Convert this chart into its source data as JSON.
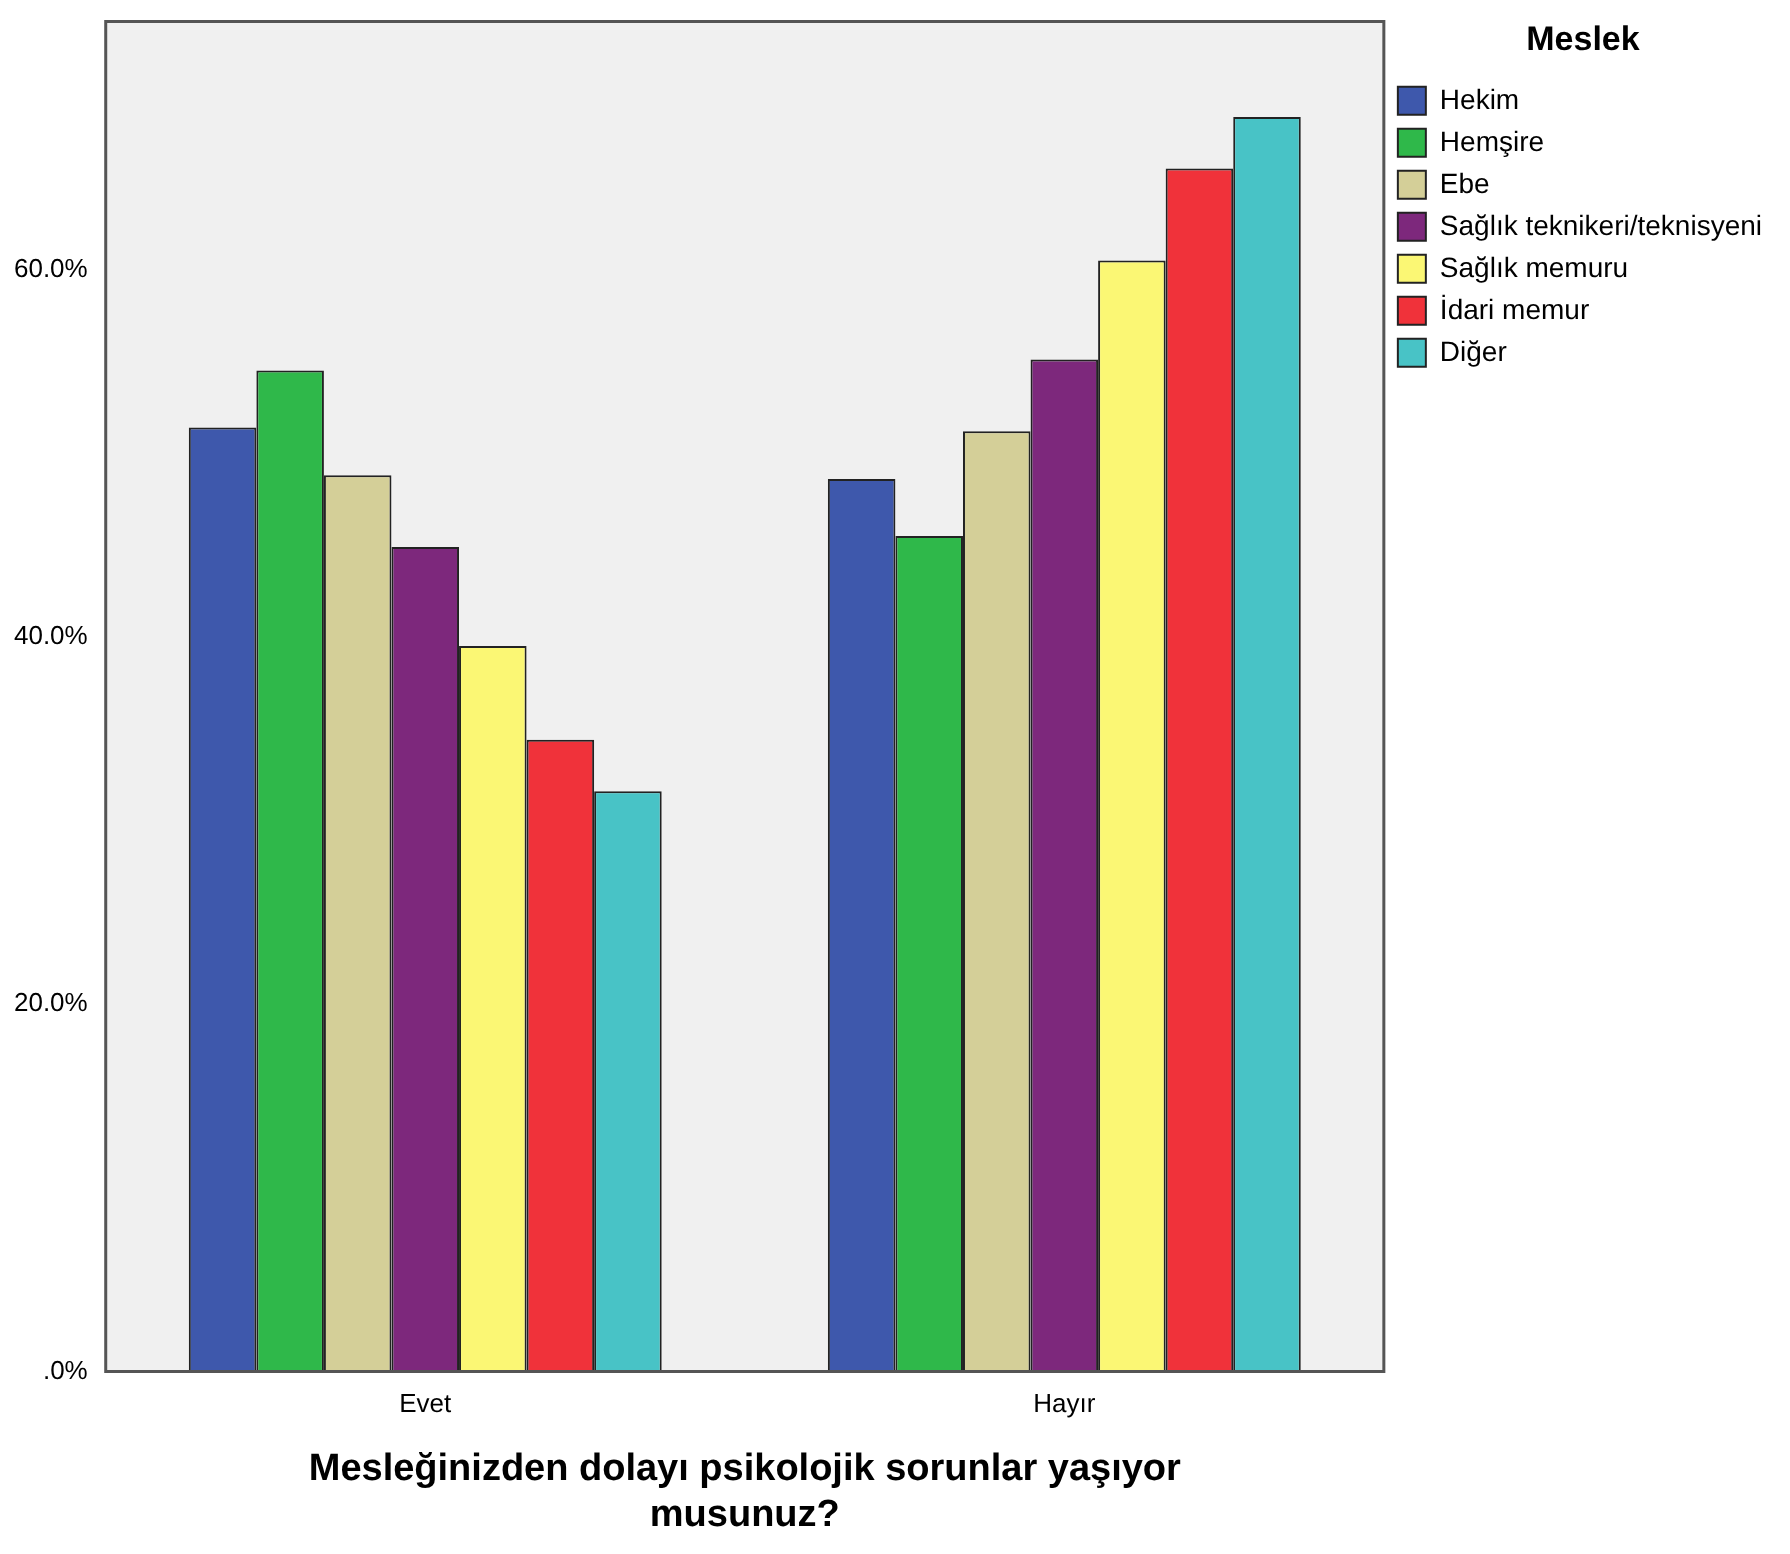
{
  "chart_data": {
    "type": "bar",
    "xlabel": "Mesleğinizden dolayı psikolojik sorunlar yaşıyor musunuz?",
    "legend_title": "Meslek",
    "categories": [
      "Evet",
      "Hayır"
    ],
    "series": [
      {
        "name": "Hekim",
        "color": "#3e58ac",
        "values": [
          51.4,
          48.6
        ]
      },
      {
        "name": "Hemşire",
        "color": "#2fb84a",
        "values": [
          54.5,
          45.5
        ]
      },
      {
        "name": "Ebe",
        "color": "#d4cf98",
        "values": [
          48.8,
          51.2
        ]
      },
      {
        "name": "Sağlık teknikeri/teknisyeni",
        "color": "#7d287c",
        "values": [
          44.9,
          55.1
        ]
      },
      {
        "name": "Sağlık memuru",
        "color": "#fbf774",
        "values": [
          39.5,
          60.5
        ]
      },
      {
        "name": "İdari memur",
        "color": "#f0323a",
        "values": [
          34.4,
          65.5
        ]
      },
      {
        "name": "Diğer",
        "color": "#48c3c6",
        "values": [
          31.6,
          68.3
        ]
      }
    ],
    "ylim": [
      0,
      73.5
    ],
    "yticks": [
      {
        "value": 0,
        "label": ".0%"
      },
      {
        "value": 20,
        "label": "20.0%"
      },
      {
        "value": 40,
        "label": "40.0%"
      },
      {
        "value": 60,
        "label": "60.0%"
      }
    ],
    "grid": false,
    "legend": "right"
  }
}
